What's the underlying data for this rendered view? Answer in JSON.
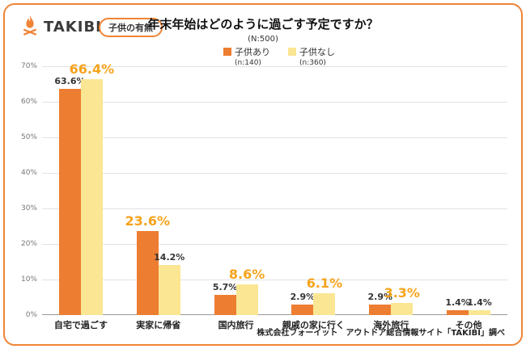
{
  "brand": {
    "logo_text": "TAKIBI",
    "badge_label": "子供の有無"
  },
  "header": {
    "title": "年末年始はどのように過ごす予定ですか？",
    "sample_size": "(N:500)"
  },
  "legend": {
    "items": [
      {
        "label": "子供あり",
        "n_label": "(n:140)",
        "color": "#ED7D31"
      },
      {
        "label": "子供なし",
        "n_label": "(n:360)",
        "color": "#FAE693"
      }
    ]
  },
  "chart_data": {
    "type": "bar",
    "title": "年末年始はどのように過ごす予定ですか？",
    "categories": [
      "自宅で過ごす",
      "実家に帰省",
      "国内旅行",
      "親戚の家に行く",
      "海外旅行",
      "その他"
    ],
    "series": [
      {
        "name": "子供あり",
        "n": 140,
        "color": "#ED7D31",
        "values": [
          63.6,
          23.6,
          5.7,
          2.9,
          2.9,
          1.4
        ]
      },
      {
        "name": "子供なし",
        "n": 360,
        "color": "#FAE693",
        "values": [
          66.4,
          14.2,
          8.6,
          6.1,
          3.3,
          1.4
        ]
      }
    ],
    "emphasis": [
      1,
      0,
      1,
      1,
      1,
      null
    ],
    "ylim": [
      0,
      70
    ],
    "yticks": [
      "0%",
      "10%",
      "20%",
      "30%",
      "40%",
      "50%",
      "60%",
      "70%"
    ],
    "grid": true,
    "legend_position": "top",
    "unit": "%"
  },
  "footer": {
    "credit": "株式会社フォーイット　アウトドア総合情報サイト「TAKIBI」調べ"
  },
  "colors": {
    "card_border": "#F08437",
    "bar_child_yes": "#ED7D31",
    "bar_child_no": "#FAE693",
    "emphasis_label": "#F5A31C",
    "text_dark": "#333333"
  }
}
